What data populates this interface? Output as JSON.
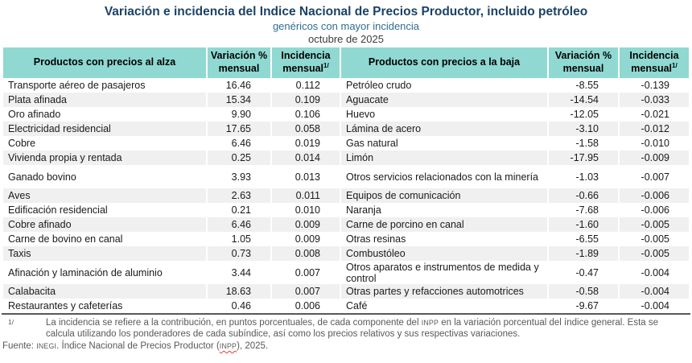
{
  "title": "Variación e incidencia del Indice Nacional de Precios Productor, incluido petróleo",
  "subtitle": "genéricos con mayor incidencia",
  "period": "octubre de 2025",
  "colors": {
    "title_navy": "#1C4265",
    "subtitle_blue": "#2E6E91",
    "header_teal": "#8FD9D2",
    "row_stripe_gray": "#F0F0F0",
    "footnote_gray": "#595959",
    "spellcheck_red": "#E3402F"
  },
  "table": {
    "headers": {
      "alza_products": "Productos con precios al alza",
      "variation": "Variación %\nmensual",
      "incidence": "Incidencia\nmensual",
      "incidence_sup": "1/",
      "baja_products": "Productos con precios a la baja"
    },
    "rows": [
      {
        "alza_product": "Transporte aéreo de pasajeros",
        "alza_variation": "16.46",
        "alza_incidence": "0.112",
        "baja_product": "Petróleo crudo",
        "baja_variation": "-8.55",
        "baja_incidence": "-0.139",
        "tall": false
      },
      {
        "alza_product": "Plata afinada",
        "alza_variation": "15.34",
        "alza_incidence": "0.109",
        "baja_product": "Aguacate",
        "baja_variation": "-14.54",
        "baja_incidence": "-0.033",
        "tall": false
      },
      {
        "alza_product": "Oro afinado",
        "alza_variation": "9.90",
        "alza_incidence": "0.106",
        "baja_product": "Huevo",
        "baja_variation": "-12.05",
        "baja_incidence": "-0.021",
        "tall": false
      },
      {
        "alza_product": "Electricidad residencial",
        "alza_variation": "17.65",
        "alza_incidence": "0.058",
        "baja_product": "Lámina de acero",
        "baja_variation": "-3.10",
        "baja_incidence": "-0.012",
        "tall": false
      },
      {
        "alza_product": "Cobre",
        "alza_variation": "6.46",
        "alza_incidence": "0.019",
        "baja_product": "Gas natural",
        "baja_variation": "-1.58",
        "baja_incidence": "-0.010",
        "tall": false
      },
      {
        "alza_product": "Vivienda propia y rentada",
        "alza_variation": "0.25",
        "alza_incidence": "0.014",
        "baja_product": "Limón",
        "baja_variation": "-17.95",
        "baja_incidence": "-0.009",
        "tall": false
      },
      {
        "alza_product": "Ganado bovino",
        "alza_variation": "3.93",
        "alza_incidence": "0.013",
        "baja_product": "Otros servicios relacionados con la minería",
        "baja_variation": "-1.03",
        "baja_incidence": "-0.007",
        "tall": true
      },
      {
        "alza_product": "Aves",
        "alza_variation": "2.63",
        "alza_incidence": "0.011",
        "baja_product": "Equipos de comunicación",
        "baja_variation": "-0.66",
        "baja_incidence": "-0.006",
        "tall": false
      },
      {
        "alza_product": "Edificación residencial",
        "alza_variation": "0.21",
        "alza_incidence": "0.010",
        "baja_product": "Naranja",
        "baja_variation": "-7.68",
        "baja_incidence": "-0.006",
        "tall": false
      },
      {
        "alza_product": "Cobre afinado",
        "alza_variation": "6.46",
        "alza_incidence": "0.009",
        "baja_product": "Carne de porcino en canal",
        "baja_variation": "-1.60",
        "baja_incidence": "-0.005",
        "tall": false
      },
      {
        "alza_product": "Carne de bovino en canal",
        "alza_variation": "1.05",
        "alza_incidence": "0.009",
        "baja_product": "Otras resinas",
        "baja_variation": "-6.55",
        "baja_incidence": "-0.005",
        "tall": false
      },
      {
        "alza_product": "Taxis",
        "alza_variation": "0.73",
        "alza_incidence": "0.008",
        "baja_product": "Combustóleo",
        "baja_variation": "-1.89",
        "baja_incidence": "-0.005",
        "tall": false
      },
      {
        "alza_product": "Afinación y laminación de aluminio",
        "alza_variation": "3.44",
        "alza_incidence": "0.007",
        "baja_product": "Otros aparatos e instrumentos de medida y control",
        "baja_variation": "-0.47",
        "baja_incidence": "-0.004",
        "tall": true
      },
      {
        "alza_product": "Calabacita",
        "alza_variation": "18.63",
        "alza_incidence": "0.007",
        "baja_product": "Otras partes y refacciones automotrices",
        "baja_variation": "-0.58",
        "baja_incidence": "-0.004",
        "tall": false
      },
      {
        "alza_product": "Restaurantes y cafeterías",
        "alza_variation": "0.46",
        "alza_incidence": "0.006",
        "baja_product": "Café",
        "baja_variation": "-9.67",
        "baja_incidence": "-0.004",
        "tall": false
      }
    ]
  },
  "footnote": {
    "marker": "1/",
    "part1": "La incidencia se refiere a la contribución, en puntos porcentuales, de cada componente del ",
    "inpp": "INPP",
    "part2": " en la variación porcentual del índice general. Esta se calcula utilizando los ponderadores de cada subíndice, así como los precios relativos y sus respectivas variaciones."
  },
  "source": {
    "prefix": "Fuente: ",
    "inegi": "INEGI",
    "mid": ". Índice Nacional de Precios Productor (",
    "inpp": "INPP",
    "suffix": "), 2025."
  }
}
